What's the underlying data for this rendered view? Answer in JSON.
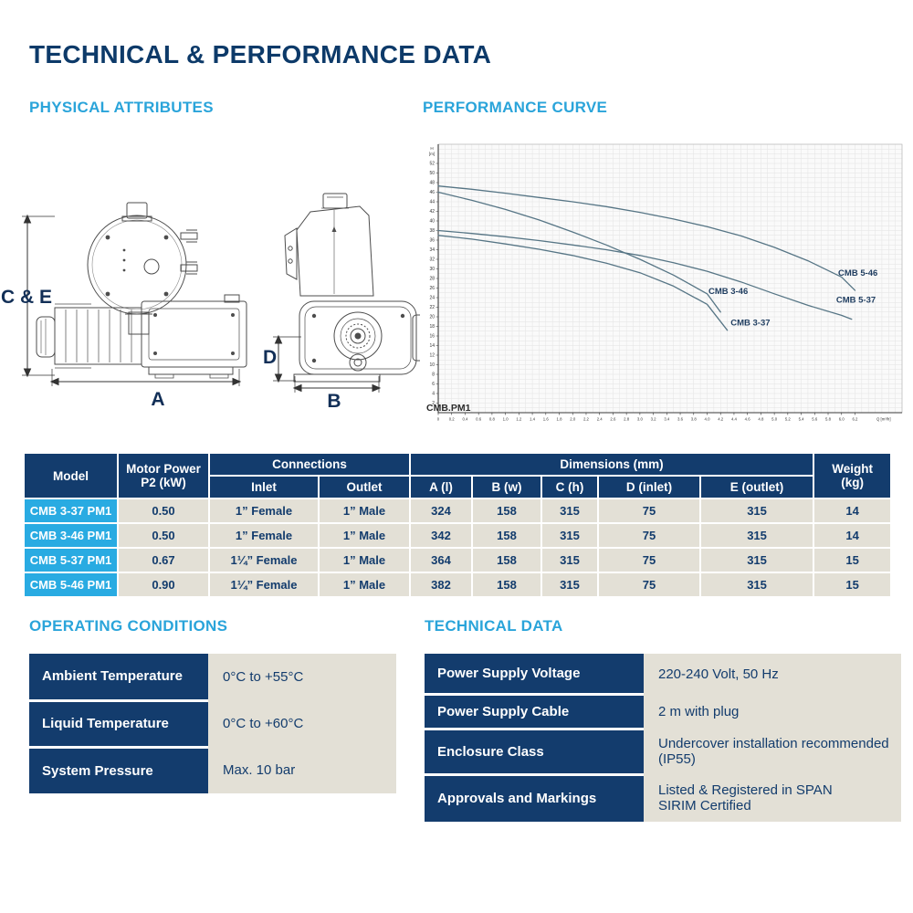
{
  "page": {
    "title": "TECHNICAL & PERFORMANCE DATA"
  },
  "section_headings": {
    "physical": "PHYSICAL ATTRIBUTES",
    "performance": "PERFORMANCE CURVE",
    "operating": "OPERATING CONDITIONS",
    "technical": "TECHNICAL DATA"
  },
  "diagram_labels": {
    "height": "C & E",
    "length": "A",
    "inlet_height": "D",
    "width": "B"
  },
  "chart_data": {
    "type": "line",
    "title": "",
    "ylabel": "H\n[m]",
    "xlabel": "Q [m³/h]",
    "corner_label": "CMB.PM1",
    "xlim": [
      0,
      6.9
    ],
    "ylim": [
      0,
      56
    ],
    "x_ticks": {
      "min": 0,
      "max": 6.2,
      "step": 0.2
    },
    "y_ticks": {
      "min": 2,
      "max": 52,
      "step": 2
    },
    "x_minor_step": 0.1,
    "y_minor_step": 1,
    "grid": true,
    "legend_position": "inline-labels",
    "series": [
      {
        "name": "CMB 5-46",
        "label_at": [
          5.95,
          28.6
        ],
        "points": [
          [
            0,
            47.3
          ],
          [
            0.5,
            46.6
          ],
          [
            1,
            45.8
          ],
          [
            1.5,
            44.9
          ],
          [
            2,
            44.0
          ],
          [
            2.5,
            43.0
          ],
          [
            3,
            41.8
          ],
          [
            3.5,
            40.4
          ],
          [
            4,
            38.8
          ],
          [
            4.5,
            36.9
          ],
          [
            5,
            34.5
          ],
          [
            5.5,
            31.7
          ],
          [
            6,
            28.3
          ],
          [
            6.2,
            25.5
          ]
        ]
      },
      {
        "name": "CMB 3-46",
        "label_at": [
          4.02,
          24.8
        ],
        "points": [
          [
            0,
            46.0
          ],
          [
            0.5,
            44.3
          ],
          [
            1,
            42.4
          ],
          [
            1.5,
            40.2
          ],
          [
            2,
            37.7
          ],
          [
            2.5,
            35.0
          ],
          [
            3,
            32.0
          ],
          [
            3.5,
            28.7
          ],
          [
            4,
            24.8
          ],
          [
            4.2,
            21.0
          ]
        ]
      },
      {
        "name": "CMB 5-37",
        "label_at": [
          5.92,
          23.0
        ],
        "points": [
          [
            0,
            38.0
          ],
          [
            0.5,
            37.4
          ],
          [
            1,
            36.7
          ],
          [
            1.5,
            35.9
          ],
          [
            2,
            35.0
          ],
          [
            2.5,
            34.0
          ],
          [
            3,
            32.8
          ],
          [
            3.5,
            31.3
          ],
          [
            4,
            29.5
          ],
          [
            4.5,
            27.3
          ],
          [
            5,
            24.8
          ],
          [
            5.5,
            22.4
          ],
          [
            6,
            20.3
          ],
          [
            6.15,
            19.5
          ]
        ]
      },
      {
        "name": "CMB 3-37",
        "label_at": [
          4.35,
          18.2
        ],
        "points": [
          [
            0,
            37.0
          ],
          [
            0.5,
            36.2
          ],
          [
            1,
            35.2
          ],
          [
            1.5,
            34.1
          ],
          [
            2,
            32.8
          ],
          [
            2.5,
            31.2
          ],
          [
            3,
            29.2
          ],
          [
            3.5,
            26.4
          ],
          [
            4,
            22.6
          ],
          [
            4.3,
            17.2
          ]
        ]
      }
    ]
  },
  "spec_table": {
    "header": {
      "model": "Model",
      "motor_power": "Motor Power\nP2 (kW)",
      "connections": "Connections",
      "inlet": "Inlet",
      "outlet": "Outlet",
      "dimensions": "Dimensions (mm)",
      "dim_a": "A (l)",
      "dim_b": "B (w)",
      "dim_c": "C (h)",
      "dim_d": "D (inlet)",
      "dim_e": "E (outlet)",
      "weight": "Weight\n(kg)"
    },
    "rows": [
      {
        "model": "CMB 3-37 PM1",
        "motor_power": "0.50",
        "inlet": "1” Female",
        "outlet": "1” Male",
        "a": "324",
        "b": "158",
        "c": "315",
        "d": "75",
        "e": "315",
        "weight": "14"
      },
      {
        "model": "CMB 3-46 PM1",
        "motor_power": "0.50",
        "inlet": "1” Female",
        "outlet": "1” Male",
        "a": "342",
        "b": "158",
        "c": "315",
        "d": "75",
        "e": "315",
        "weight": "14"
      },
      {
        "model": "CMB 5-37 PM1",
        "motor_power": "0.67",
        "inlet": "1¼” Female",
        "outlet": "1” Male",
        "a": "364",
        "b": "158",
        "c": "315",
        "d": "75",
        "e": "315",
        "weight": "15"
      },
      {
        "model": "CMB 5-46 PM1",
        "motor_power": "0.90",
        "inlet": "1¼” Female",
        "outlet": "1” Male",
        "a": "382",
        "b": "158",
        "c": "315",
        "d": "75",
        "e": "315",
        "weight": "15"
      }
    ]
  },
  "operating_table": {
    "rows": [
      {
        "label": "Ambient Temperature",
        "value": "0°C to +55°C"
      },
      {
        "label": "Liquid Temperature",
        "value": "0°C to +60°C"
      },
      {
        "label": "System Pressure",
        "value": "Max. 10 bar"
      }
    ]
  },
  "technical_table": {
    "rows": [
      {
        "label": "Power Supply Voltage",
        "value": "220-240 Volt, 50 Hz"
      },
      {
        "label": "Power Supply Cable",
        "value": "2 m with plug"
      },
      {
        "label": "Enclosure Class",
        "value": "Undercover installation recommended\n(IP55)"
      },
      {
        "label": "Approvals and Markings",
        "value": "Listed & Registered in SPAN\nSIRIM Certified"
      }
    ]
  },
  "colors": {
    "navy": "#133c6d",
    "cyan": "#29abe2",
    "heading_blue": "#2aa4da",
    "title_navy": "#0d3a69",
    "beige": "#e3e0d6",
    "curve": "#567585",
    "curve_label": "#1e3c5f",
    "grid": "#e3e3e3",
    "plot_bg": "#fafafa"
  }
}
